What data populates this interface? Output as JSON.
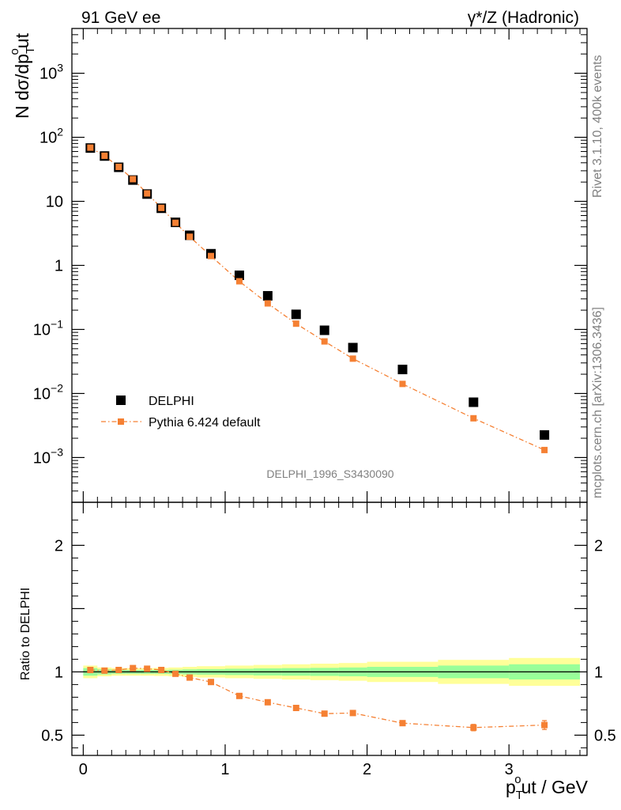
{
  "header": {
    "left_label": "91 GeV ee",
    "right_label": "γ*/Z (Hadronic)"
  },
  "side_labels": {
    "rivet": "Rivet 3.1.10,  400k events",
    "mcplots": "mcplots.cern.ch [arXiv:1306.3436]"
  },
  "watermark": "DELPHI_1996_S3430090",
  "axes": {
    "main_ylabel": "N dσ/dp",
    "main_ylabel_sub": "T",
    "main_ylabel_sup": "o",
    "main_ylabel_tail": "ut",
    "ratio_ylabel": "Ratio to DELPHI",
    "xlabel_p": "p",
    "xlabel_sub": "T",
    "xlabel_sup": "o",
    "xlabel_tail": "ut / GeV"
  },
  "legend": {
    "data": "DELPHI",
    "mc": "Pythia 6.424 default"
  },
  "colors": {
    "data": "#000000",
    "mc": "#f58033",
    "band_inner": "#99ff99",
    "band_outer": "#ffff99"
  },
  "chart_data": [
    {
      "type": "scatter",
      "panel": "main",
      "y_scale": "log",
      "xlim": [
        -0.08,
        3.55
      ],
      "ylim": [
        0.0002,
        5000
      ],
      "x_ticks": [
        "0",
        "1",
        "2",
        "3"
      ],
      "y_ticks": [
        "10^-3",
        "10^-2",
        "10^-1",
        "1",
        "10",
        "10^2",
        "10^3"
      ],
      "legend_position": "bottom-left",
      "series": [
        {
          "name": "DELPHI",
          "x": [
            0.05,
            0.15,
            0.25,
            0.35,
            0.45,
            0.55,
            0.65,
            0.75,
            0.9,
            1.1,
            1.3,
            1.5,
            1.7,
            1.9,
            2.25,
            2.75,
            3.25
          ],
          "y": [
            68,
            51,
            34,
            21.5,
            13,
            7.8,
            4.7,
            2.95,
            1.52,
            0.7,
            0.335,
            0.172,
            0.097,
            0.052,
            0.0237,
            0.0073,
            0.00225
          ]
        },
        {
          "name": "Pythia 6.424 default",
          "x": [
            0.05,
            0.15,
            0.25,
            0.35,
            0.45,
            0.55,
            0.65,
            0.75,
            0.9,
            1.1,
            1.3,
            1.5,
            1.7,
            1.9,
            2.25,
            2.75,
            3.25
          ],
          "y": [
            69,
            51.5,
            34.5,
            22.2,
            13.3,
            7.9,
            4.62,
            2.8,
            1.4,
            0.565,
            0.255,
            0.123,
            0.065,
            0.035,
            0.0141,
            0.0041,
            0.00131
          ]
        }
      ]
    },
    {
      "type": "scatter",
      "panel": "ratio",
      "xlim": [
        -0.08,
        3.55
      ],
      "ylim": [
        0.34,
        2.34
      ],
      "y_ticks": [
        "0.5",
        "1",
        "2"
      ],
      "bands": {
        "edges": [
          0.0,
          0.1,
          0.2,
          0.3,
          0.4,
          0.5,
          0.6,
          0.7,
          0.8,
          1.0,
          1.2,
          1.4,
          1.6,
          1.8,
          2.0,
          2.5,
          3.0,
          3.5
        ],
        "inner": [
          0.03,
          0.02,
          0.015,
          0.015,
          0.015,
          0.015,
          0.017,
          0.02,
          0.022,
          0.025,
          0.028,
          0.03,
          0.032,
          0.035,
          0.04,
          0.05,
          0.06
        ],
        "outer": [
          0.05,
          0.035,
          0.03,
          0.03,
          0.03,
          0.032,
          0.035,
          0.04,
          0.045,
          0.05,
          0.055,
          0.06,
          0.065,
          0.07,
          0.08,
          0.095,
          0.11
        ]
      },
      "series": [
        {
          "name": "Pythia 6.424 default",
          "x": [
            0.05,
            0.15,
            0.25,
            0.35,
            0.45,
            0.55,
            0.65,
            0.75,
            0.9,
            1.1,
            1.3,
            1.5,
            1.7,
            1.9,
            2.25,
            2.75,
            3.25
          ],
          "y": [
            1.015,
            1.01,
            1.015,
            1.03,
            1.025,
            1.015,
            0.985,
            0.955,
            0.92,
            0.81,
            0.76,
            0.715,
            0.67,
            0.675,
            0.595,
            0.56,
            0.58
          ],
          "yerr": [
            0.01,
            0.005,
            0.005,
            0.005,
            0.005,
            0.005,
            0.005,
            0.005,
            0.006,
            0.008,
            0.008,
            0.008,
            0.01,
            0.01,
            0.012,
            0.025,
            0.035
          ]
        }
      ]
    }
  ]
}
